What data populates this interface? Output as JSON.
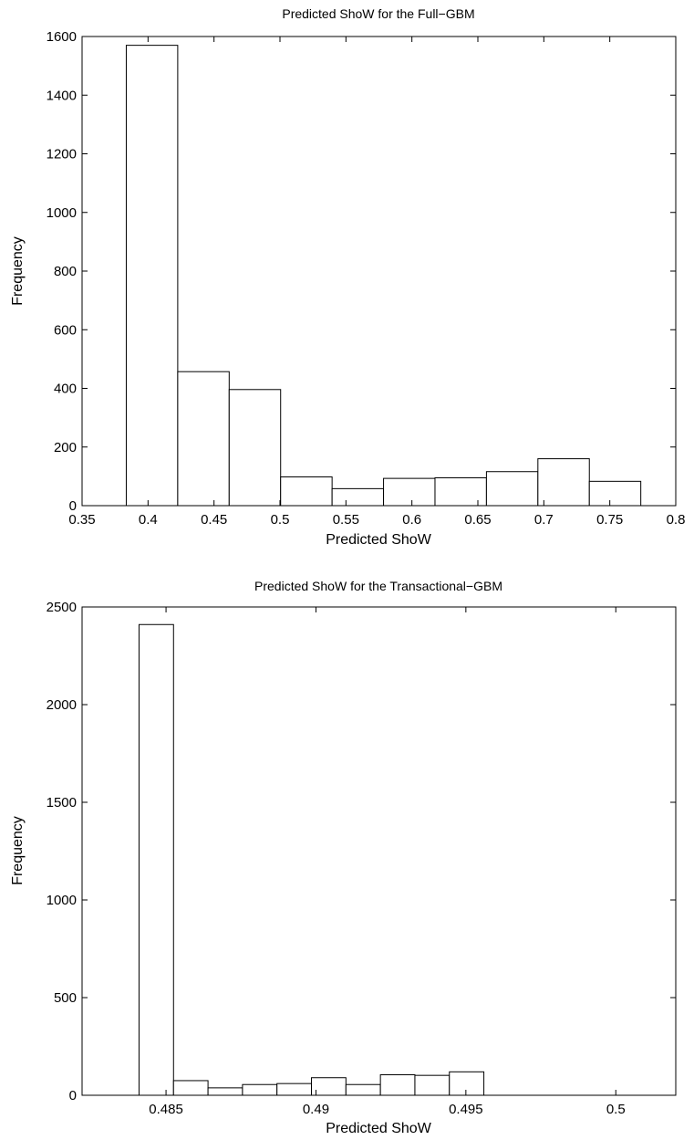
{
  "chart_data": [
    {
      "type": "bar",
      "title": "Predicted ShoW for the Full−GBM",
      "xlabel": "Predicted ShoW",
      "ylabel": "Frequency",
      "xlim": [
        0.35,
        0.8
      ],
      "ylim": [
        0,
        1600
      ],
      "xticks": [
        "0.35",
        "0.4",
        "0.45",
        "0.5",
        "0.55",
        "0.6",
        "0.65",
        "0.7",
        "0.75",
        "0.8"
      ],
      "yticks": [
        "0",
        "200",
        "400",
        "600",
        "800",
        "1000",
        "1200",
        "1400",
        "1600"
      ],
      "bin_edges": [
        0.3835,
        0.4225,
        0.4615,
        0.5005,
        0.5395,
        0.5785,
        0.6175,
        0.6565,
        0.6955,
        0.7345,
        0.7735
      ],
      "values": [
        1570,
        457,
        396,
        98,
        58,
        93,
        95,
        116,
        160,
        83
      ],
      "grid": false
    },
    {
      "type": "bar",
      "title": "Predicted ShoW for the Transactional−GBM",
      "xlabel": "Predicted ShoW",
      "ylabel": "Frequency",
      "xlim": [
        0.4822,
        0.502
      ],
      "ylim": [
        0,
        2500
      ],
      "xticks": [
        "0.485",
        "0.49",
        "0.495",
        "0.5"
      ],
      "yticks": [
        "0",
        "500",
        "1000",
        "1500",
        "2000",
        "2500"
      ],
      "bin_edges": [
        0.4841,
        0.48525,
        0.4864,
        0.48755,
        0.4887,
        0.48985,
        0.491,
        0.49215,
        0.4933,
        0.49445,
        0.4956,
        0.49675,
        0.4979
      ],
      "values": [
        2410,
        75,
        38,
        55,
        60,
        90,
        55,
        105,
        102,
        120,
        0,
        0
      ],
      "grid": false
    }
  ]
}
